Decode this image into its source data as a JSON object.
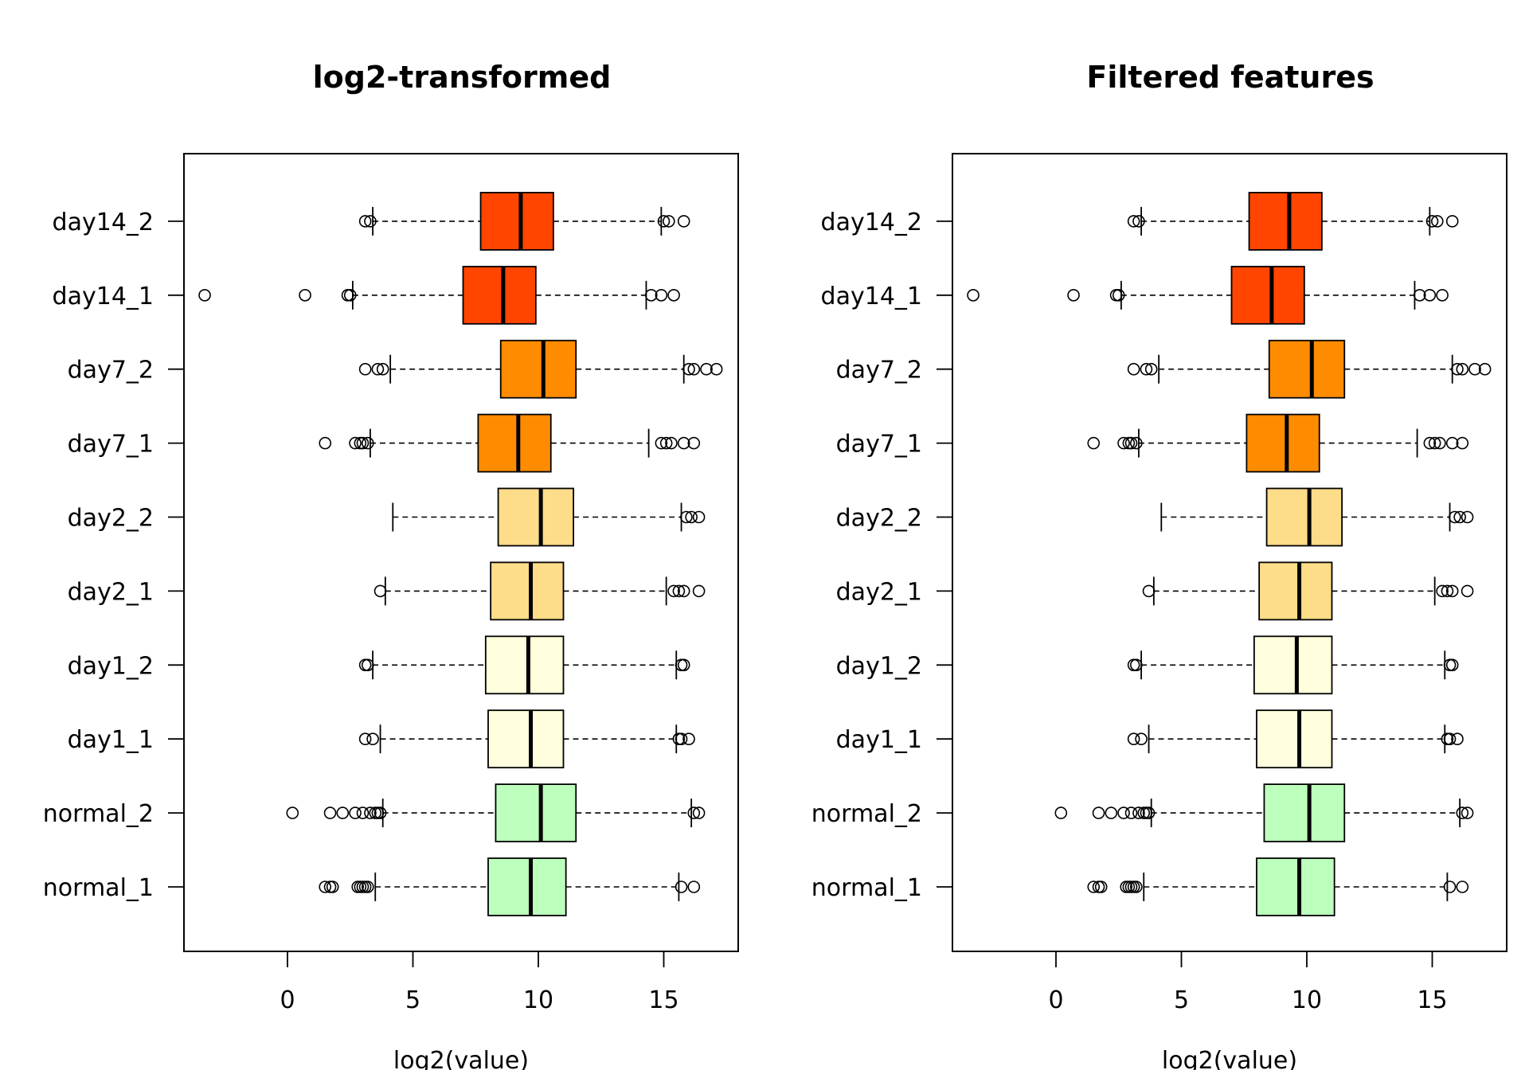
{
  "chart_data": [
    {
      "type": "boxplot",
      "orientation": "horizontal",
      "title": "log2-transformed",
      "xlabel": "log2(value)",
      "ylabel": "",
      "xlim": [
        -4.3,
        17.7
      ],
      "xticks": [
        0,
        5,
        10,
        15
      ],
      "grid": false,
      "series": [
        {
          "name": "normal_1",
          "color": "#bdffbd",
          "whisker_low": 3.5,
          "q1": 8.0,
          "median": 9.7,
          "q3": 11.1,
          "whisker_high": 15.6,
          "outliers": [
            1.5,
            1.7,
            1.8,
            2.8,
            2.9,
            3.0,
            3.1,
            3.2,
            15.7,
            16.2
          ]
        },
        {
          "name": "normal_2",
          "color": "#bdffbd",
          "whisker_low": 3.8,
          "q1": 8.3,
          "median": 10.1,
          "q3": 11.5,
          "whisker_high": 16.1,
          "outliers": [
            0.2,
            1.7,
            2.2,
            2.7,
            3.0,
            3.3,
            3.5,
            3.6,
            3.7,
            16.2,
            16.4
          ]
        },
        {
          "name": "day1_1",
          "color": "#ffffdd",
          "whisker_low": 3.7,
          "q1": 8.0,
          "median": 9.7,
          "q3": 11.0,
          "whisker_high": 15.5,
          "outliers": [
            3.1,
            3.4,
            15.6,
            15.7,
            16.0
          ]
        },
        {
          "name": "day1_2",
          "color": "#ffffdd",
          "whisker_low": 3.4,
          "q1": 7.9,
          "median": 9.6,
          "q3": 11.0,
          "whisker_high": 15.5,
          "outliers": [
            3.1,
            3.2,
            15.7,
            15.8
          ]
        },
        {
          "name": "day2_1",
          "color": "#fddc8a",
          "whisker_low": 3.9,
          "q1": 8.1,
          "median": 9.7,
          "q3": 11.0,
          "whisker_high": 15.1,
          "outliers": [
            3.7,
            15.4,
            15.6,
            15.8,
            16.4
          ]
        },
        {
          "name": "day2_2",
          "color": "#fddc8a",
          "whisker_low": 4.2,
          "q1": 8.4,
          "median": 10.1,
          "q3": 11.4,
          "whisker_high": 15.7,
          "outliers": [
            15.9,
            16.1,
            16.4
          ]
        },
        {
          "name": "day7_1",
          "color": "#ff8c00",
          "whisker_low": 3.3,
          "q1": 7.6,
          "median": 9.2,
          "q3": 10.5,
          "whisker_high": 14.4,
          "outliers": [
            1.5,
            2.7,
            2.9,
            3.0,
            3.2,
            14.9,
            15.1,
            15.3,
            15.8,
            16.2
          ]
        },
        {
          "name": "day7_2",
          "color": "#ff8c00",
          "whisker_low": 4.1,
          "q1": 8.5,
          "median": 10.2,
          "q3": 11.5,
          "whisker_high": 15.8,
          "outliers": [
            3.1,
            3.6,
            3.8,
            16.0,
            16.2,
            16.7,
            17.1
          ]
        },
        {
          "name": "day14_1",
          "color": "#ff4500",
          "whisker_low": 2.6,
          "q1": 7.0,
          "median": 8.6,
          "q3": 9.9,
          "whisker_high": 14.3,
          "outliers": [
            -3.3,
            0.7,
            2.4,
            2.5,
            14.5,
            14.9,
            15.4
          ]
        },
        {
          "name": "day14_2",
          "color": "#ff4500",
          "whisker_low": 3.4,
          "q1": 7.7,
          "median": 9.3,
          "q3": 10.6,
          "whisker_high": 14.9,
          "outliers": [
            3.1,
            3.3,
            15.0,
            15.2,
            15.8
          ]
        }
      ]
    },
    {
      "type": "boxplot",
      "orientation": "horizontal",
      "title": "Filtered features",
      "xlabel": "log2(value)",
      "ylabel": "",
      "xlim": [
        -4.3,
        17.7
      ],
      "xticks": [
        0,
        5,
        10,
        15
      ],
      "grid": false,
      "series": [
        {
          "name": "normal_1",
          "color": "#bdffbd",
          "whisker_low": 3.5,
          "q1": 8.0,
          "median": 9.7,
          "q3": 11.1,
          "whisker_high": 15.6,
          "outliers": [
            1.5,
            1.7,
            1.8,
            2.8,
            2.9,
            3.0,
            3.1,
            3.2,
            15.7,
            16.2
          ]
        },
        {
          "name": "normal_2",
          "color": "#bdffbd",
          "whisker_low": 3.8,
          "q1": 8.3,
          "median": 10.1,
          "q3": 11.5,
          "whisker_high": 16.1,
          "outliers": [
            0.2,
            1.7,
            2.2,
            2.7,
            3.0,
            3.3,
            3.5,
            3.6,
            3.7,
            16.2,
            16.4
          ]
        },
        {
          "name": "day1_1",
          "color": "#ffffdd",
          "whisker_low": 3.7,
          "q1": 8.0,
          "median": 9.7,
          "q3": 11.0,
          "whisker_high": 15.5,
          "outliers": [
            3.1,
            3.4,
            15.6,
            15.7,
            16.0
          ]
        },
        {
          "name": "day1_2",
          "color": "#ffffdd",
          "whisker_low": 3.4,
          "q1": 7.9,
          "median": 9.6,
          "q3": 11.0,
          "whisker_high": 15.5,
          "outliers": [
            3.1,
            3.2,
            15.7,
            15.8
          ]
        },
        {
          "name": "day2_1",
          "color": "#fddc8a",
          "whisker_low": 3.9,
          "q1": 8.1,
          "median": 9.7,
          "q3": 11.0,
          "whisker_high": 15.1,
          "outliers": [
            3.7,
            15.4,
            15.6,
            15.8,
            16.4
          ]
        },
        {
          "name": "day2_2",
          "color": "#fddc8a",
          "whisker_low": 4.2,
          "q1": 8.4,
          "median": 10.1,
          "q3": 11.4,
          "whisker_high": 15.7,
          "outliers": [
            15.9,
            16.1,
            16.4
          ]
        },
        {
          "name": "day7_1",
          "color": "#ff8c00",
          "whisker_low": 3.3,
          "q1": 7.6,
          "median": 9.2,
          "q3": 10.5,
          "whisker_high": 14.4,
          "outliers": [
            1.5,
            2.7,
            2.9,
            3.0,
            3.2,
            14.9,
            15.1,
            15.3,
            15.8,
            16.2
          ]
        },
        {
          "name": "day7_2",
          "color": "#ff8c00",
          "whisker_low": 4.1,
          "q1": 8.5,
          "median": 10.2,
          "q3": 11.5,
          "whisker_high": 15.8,
          "outliers": [
            3.1,
            3.6,
            3.8,
            16.0,
            16.2,
            16.7,
            17.1
          ]
        },
        {
          "name": "day14_1",
          "color": "#ff4500",
          "whisker_low": 2.6,
          "q1": 7.0,
          "median": 8.6,
          "q3": 9.9,
          "whisker_high": 14.3,
          "outliers": [
            -3.3,
            0.7,
            2.4,
            2.5,
            14.5,
            14.9,
            15.4
          ]
        },
        {
          "name": "day14_2",
          "color": "#ff4500",
          "whisker_low": 3.4,
          "q1": 7.7,
          "median": 9.3,
          "q3": 10.6,
          "whisker_high": 14.9,
          "outliers": [
            3.1,
            3.3,
            15.0,
            15.2,
            15.8
          ]
        }
      ]
    }
  ]
}
